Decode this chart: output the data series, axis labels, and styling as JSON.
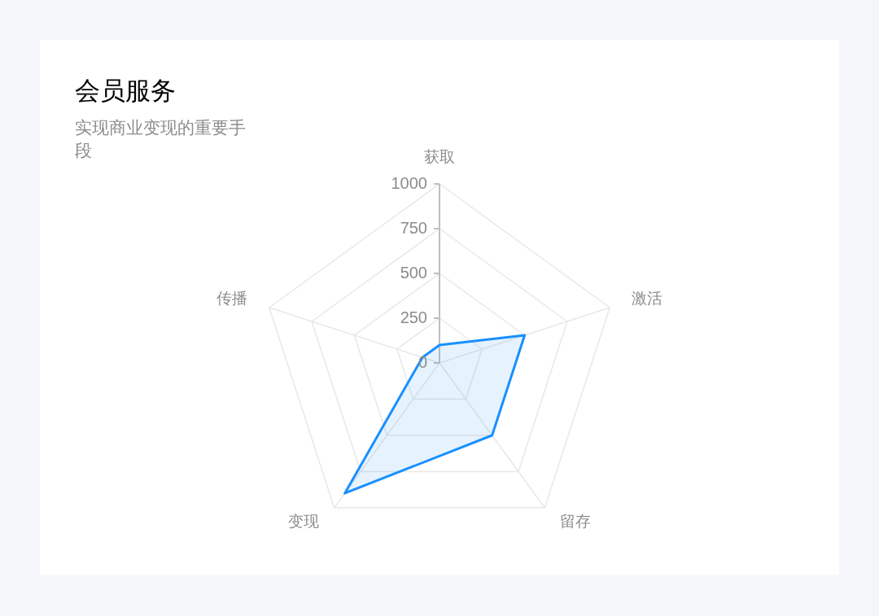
{
  "chart_data": {
    "type": "radar",
    "title": "会员服务",
    "subtitle": "实现商业变现的重要手段",
    "categories": [
      "获取",
      "激活",
      "留存",
      "变现",
      "传播"
    ],
    "series": [
      {
        "color": "#1890ff",
        "values": [
          100,
          500,
          500,
          900,
          100
        ]
      }
    ],
    "ylim": [
      0,
      1000
    ],
    "yticks": [
      0,
      250,
      500,
      750,
      1000
    ],
    "grid": true,
    "marker": "none"
  }
}
